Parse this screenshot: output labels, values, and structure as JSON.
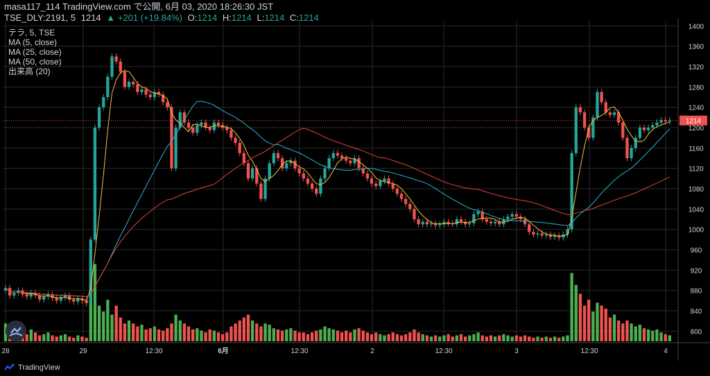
{
  "header": {
    "publish_line": "masa117_114 TradingView.com で公開, 6月 03, 2020 18:26:30 JST",
    "symbol": "TSE_DLY:2191, 5",
    "price": "1214",
    "change": "+201 (+19.84%)",
    "open_label": "O:",
    "open": "1214",
    "high_label": "H:",
    "high": "1214",
    "low_label": "L:",
    "low": "1214",
    "close_label": "C:",
    "close": "1214"
  },
  "legend": {
    "items": [
      "テラ, 5, TSE",
      "MA (5, close)",
      "MA (25, close)",
      "MA (50, close)",
      "出来高 (20)"
    ]
  },
  "footer": {
    "brand": "TradingView"
  },
  "colors": {
    "up": "#26a69a",
    "down": "#ef5350",
    "ma5": "#f5c242",
    "ma25": "#26b6d4",
    "ma50": "#e0453a",
    "vol_up": "#4caf50",
    "vol_down": "#ef5350",
    "grid": "#2a2a2a",
    "price_line": "#ef5350"
  },
  "chart_data": {
    "type": "candlestick",
    "title": "",
    "ylim": [
      780,
      1410
    ],
    "y_ticks": [
      800,
      840,
      880,
      920,
      960,
      1000,
      1040,
      1080,
      1120,
      1160,
      1200,
      1240,
      1280,
      1320,
      1360,
      1400
    ],
    "x_ticks": [
      "28",
      "29",
      "12:30",
      "6月",
      "12:30",
      "2",
      "12:30",
      "3",
      "12:30",
      "4"
    ],
    "last_price": 1214,
    "grid": true,
    "legend_position": "top-left",
    "price_series": [
      885,
      870,
      875,
      880,
      872,
      868,
      875,
      870,
      862,
      868,
      872,
      865,
      860,
      866,
      870,
      862,
      858,
      864,
      860,
      855,
      980,
      1200,
      1240,
      1260,
      1300,
      1340,
      1330,
      1310,
      1280,
      1290,
      1285,
      1270,
      1275,
      1265,
      1260,
      1270,
      1265,
      1250,
      1240,
      1120,
      1200,
      1230,
      1210,
      1200,
      1190,
      1205,
      1210,
      1200,
      1195,
      1210,
      1205,
      1200,
      1195,
      1180,
      1170,
      1150,
      1130,
      1100,
      1120,
      1090,
      1060,
      1100,
      1130,
      1150,
      1140,
      1120,
      1130,
      1135,
      1120,
      1110,
      1100,
      1090,
      1080,
      1070,
      1100,
      1120,
      1140,
      1150,
      1145,
      1140,
      1135,
      1130,
      1140,
      1120,
      1110,
      1100,
      1090,
      1085,
      1095,
      1100,
      1090,
      1080,
      1070,
      1060,
      1050,
      1040,
      1020,
      1010,
      1015,
      1010,
      1012,
      1008,
      1010,
      1015,
      1012,
      1010,
      1020,
      1015,
      1010,
      1012,
      1030,
      1035,
      1020,
      1015,
      1012,
      1015,
      1010,
      1020,
      1025,
      1030,
      1025,
      1020,
      1010,
      995,
      990,
      992,
      988,
      990,
      985,
      988,
      984,
      990,
      1000,
      1150,
      1240,
      1230,
      1200,
      1180,
      1220,
      1270,
      1250,
      1230,
      1225,
      1230,
      1210,
      1180,
      1140,
      1160,
      1180,
      1200,
      1195,
      1200,
      1205,
      1210,
      1215,
      1212,
      1214
    ],
    "volume_series": [
      30,
      20,
      25,
      15,
      18,
      12,
      20,
      15,
      10,
      12,
      15,
      10,
      8,
      10,
      12,
      8,
      6,
      10,
      8,
      6,
      95,
      130,
      60,
      50,
      70,
      45,
      60,
      40,
      30,
      35,
      30,
      25,
      28,
      20,
      22,
      25,
      20,
      18,
      22,
      30,
      45,
      35,
      30,
      25,
      20,
      22,
      18,
      15,
      20,
      18,
      15,
      12,
      15,
      25,
      30,
      35,
      40,
      45,
      35,
      30,
      25,
      30,
      28,
      22,
      20,
      18,
      20,
      22,
      18,
      15,
      15,
      12,
      15,
      18,
      20,
      25,
      22,
      20,
      18,
      15,
      18,
      15,
      20,
      22,
      18,
      15,
      12,
      15,
      12,
      10,
      12,
      15,
      12,
      10,
      12,
      15,
      20,
      15,
      12,
      10,
      8,
      10,
      8,
      10,
      12,
      8,
      10,
      12,
      8,
      10,
      12,
      15,
      10,
      8,
      10,
      8,
      10,
      12,
      10,
      8,
      10,
      8,
      10,
      8,
      6,
      8,
      6,
      8,
      6,
      8,
      6,
      8,
      10,
      115,
      95,
      80,
      60,
      70,
      50,
      65,
      60,
      55,
      40,
      45,
      35,
      30,
      35,
      30,
      25,
      28,
      22,
      20,
      18,
      20,
      15,
      12,
      10
    ]
  }
}
